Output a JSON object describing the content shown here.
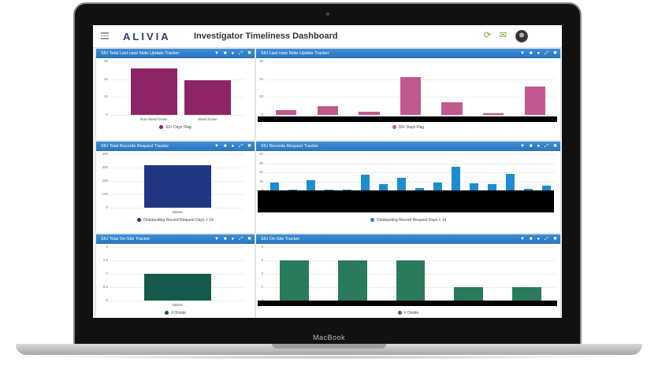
{
  "device": {
    "brand": "MacBook"
  },
  "app": {
    "logo": "ALIVIA",
    "title": "Investigator Timeliness Dashboard",
    "icons": [
      "refresh-icon",
      "mail-icon",
      "user-avatar"
    ]
  },
  "panel_tools": [
    "filter-icon",
    "save-icon",
    "settings-icon",
    "expand-icon",
    "close-icon"
  ],
  "panels": {
    "p1": {
      "title": "SIU Total Last case Note Update Tracker",
      "legend": "30+ Days Flag",
      "color": "#8e2463"
    },
    "p2": {
      "title": "SIU Last case Note Update Tracker",
      "legend": "30+ Days Flag",
      "color": "#c2588d"
    },
    "p3": {
      "title": "SIU Total Records Request Tracker",
      "legend": "Outstanding Record Request Days > 14",
      "color": "#223784"
    },
    "p4": {
      "title": "SIU Records Request Tracker",
      "legend": "Outstanding Record Request Days > 14",
      "color": "#1a8ed1"
    },
    "p5": {
      "title": "SIU Total On-Site Tracker",
      "legend": "# Onsite",
      "color": "#155a4d"
    },
    "p6": {
      "title": "SIU On-Site Tracker",
      "legend": "# Onsite",
      "color": "#2a7a5c"
    }
  },
  "chart_data": [
    {
      "id": "p1",
      "type": "bar",
      "categories": [
        "Non-Stand Down",
        "Stand Down"
      ],
      "values": [
        26,
        19.5
      ],
      "ylim": [
        0,
        30
      ],
      "yticks": [
        "0",
        "10",
        "20",
        "30"
      ],
      "series": [
        {
          "name": "30+ Days Flag",
          "values": [
            26,
            19.5
          ]
        }
      ]
    },
    {
      "id": "p2",
      "type": "bar",
      "values": [
        2.5,
        4.8,
        1.8,
        21,
        7,
        1,
        16
      ],
      "ylim": [
        0,
        30
      ],
      "yticks": [
        "0",
        "10",
        "20",
        "30"
      ],
      "series": [
        {
          "name": "30+ Days Flag",
          "values": [
            2.5,
            4.8,
            1.8,
            21,
            7,
            1,
            16
          ]
        }
      ]
    },
    {
      "id": "p3",
      "type": "bar",
      "categories": [
        "Values"
      ],
      "values": [
        320
      ],
      "ylim": [
        0,
        400
      ],
      "yticks": [
        "0",
        "100",
        "200",
        "300",
        "400"
      ],
      "series": [
        {
          "name": "Outstanding Record Request Days > 14",
          "values": [
            320
          ]
        }
      ]
    },
    {
      "id": "p4",
      "type": "bar",
      "values": [
        9,
        1,
        11,
        1,
        0.5,
        17,
        7,
        14,
        3,
        9,
        26,
        8,
        7,
        18,
        2,
        5
      ],
      "ylim": [
        0,
        40
      ],
      "yticks": [
        "0",
        "10",
        "20",
        "30",
        "40"
      ],
      "series": [
        {
          "name": "Outstanding Record Request Days > 14",
          "values": [
            9,
            1,
            11,
            1,
            0.5,
            17,
            7,
            14,
            3,
            9,
            26,
            8,
            7,
            18,
            2,
            5
          ]
        }
      ]
    },
    {
      "id": "p5",
      "type": "bar",
      "categories": [
        "Values"
      ],
      "values": [
        1
      ],
      "ylim": [
        0,
        2
      ],
      "yticks": [
        "0",
        "0.5",
        "1",
        "1.5",
        "2"
      ],
      "series": [
        {
          "name": "# Onsite",
          "values": [
            1
          ]
        }
      ]
    },
    {
      "id": "p6",
      "type": "bar",
      "values": [
        3,
        3,
        3,
        1,
        1
      ],
      "ylim": [
        0,
        4
      ],
      "yticks": [
        "0",
        "1",
        "2",
        "3",
        "4"
      ],
      "series": [
        {
          "name": "# Onsite",
          "values": [
            3,
            3,
            3,
            1,
            1
          ]
        }
      ]
    }
  ]
}
